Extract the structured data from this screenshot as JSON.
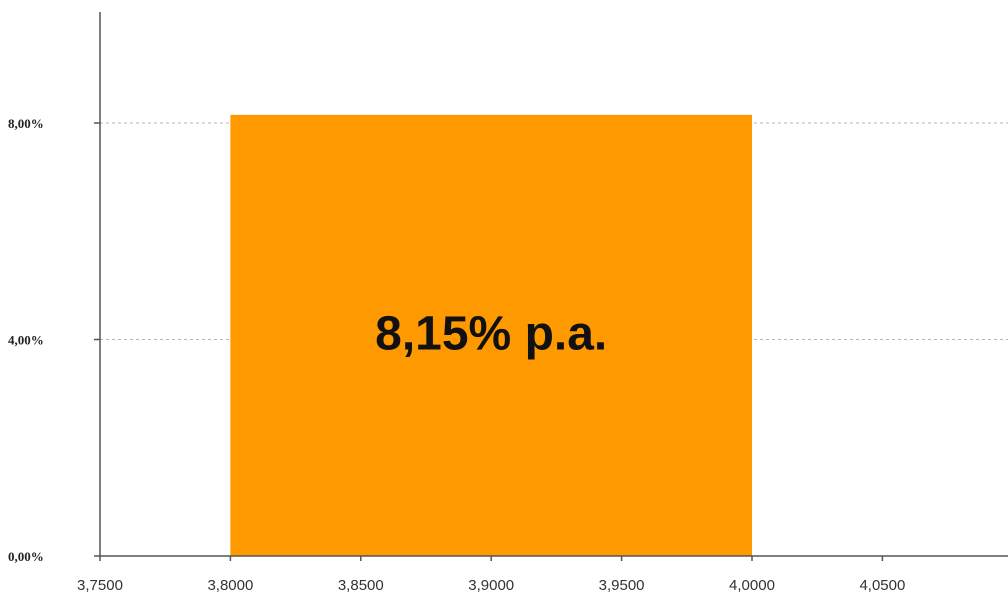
{
  "chart_data": {
    "type": "bar",
    "title": "",
    "xlabel": "",
    "ylabel": "",
    "bars": [
      {
        "x_start": 3.8,
        "x_end": 4.0,
        "value": 8.15,
        "label": "8,15% p.a.",
        "color": "#FF9900"
      }
    ],
    "xlim": [
      3.75,
      4.09
    ],
    "ylim": [
      0,
      10
    ],
    "x_ticks": [
      3.75,
      3.8,
      3.85,
      3.9,
      3.95,
      4.0,
      4.05
    ],
    "x_tick_labels": [
      "3,7500",
      "3,8000",
      "3,8500",
      "3,9000",
      "3,9500",
      "4,0000",
      "4,0500"
    ],
    "y_ticks": [
      0,
      4,
      8
    ],
    "y_tick_labels": [
      "0,00%",
      "4,00%",
      "8,00%"
    ],
    "grid": true,
    "legend": "none"
  }
}
